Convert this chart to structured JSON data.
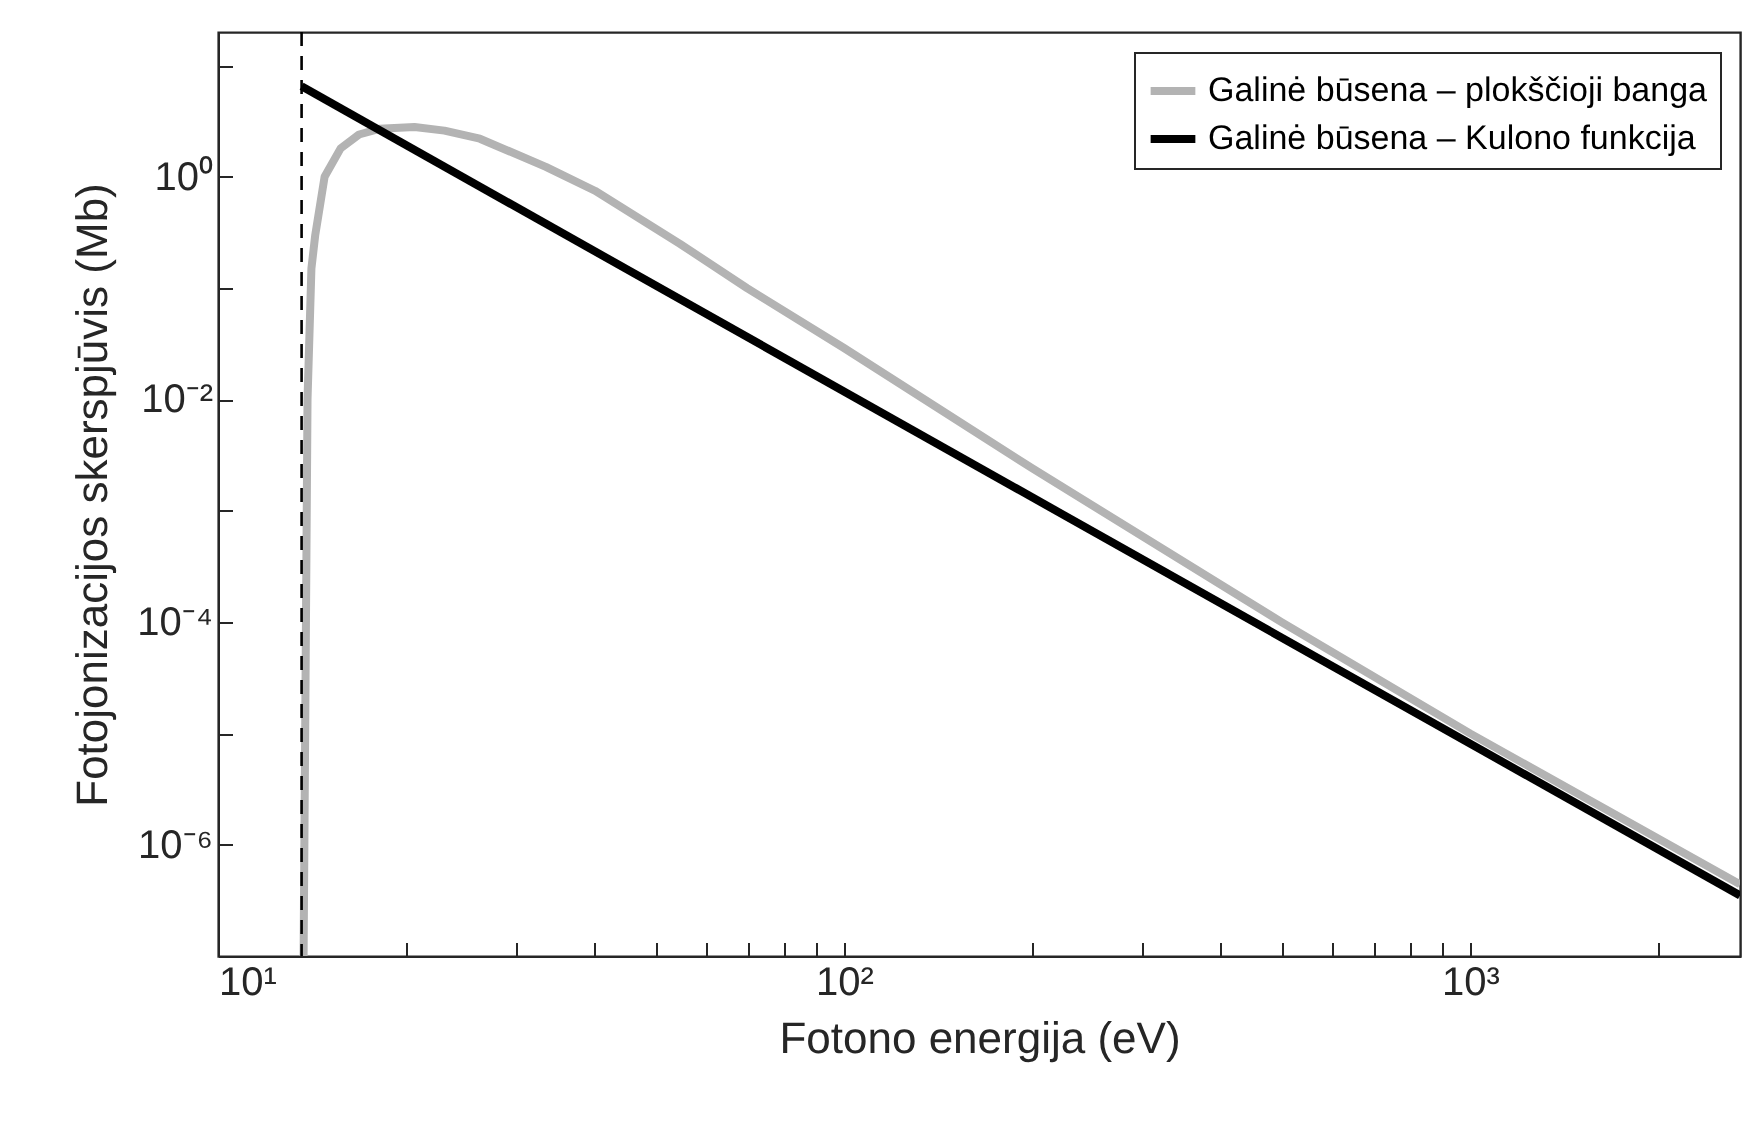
{
  "chart_data": {
    "type": "line",
    "xlabel": "Fotono energija (eV)",
    "ylabel": "Fotojonizacijos skerspjūvis (Mb)",
    "log": "xy",
    "xlim": [
      10,
      2700
    ],
    "ylim": [
      1e-07,
      20
    ],
    "xticks": [
      {
        "value": 10,
        "label": "10¹"
      },
      {
        "value": 20,
        "label": null
      },
      {
        "value": 30,
        "label": null
      },
      {
        "value": 40,
        "label": null
      },
      {
        "value": 50,
        "label": null
      },
      {
        "value": 60,
        "label": null
      },
      {
        "value": 70,
        "label": null
      },
      {
        "value": 80,
        "label": null
      },
      {
        "value": 90,
        "label": null
      },
      {
        "value": 100,
        "label": "10²"
      },
      {
        "value": 200,
        "label": null
      },
      {
        "value": 300,
        "label": null
      },
      {
        "value": 400,
        "label": null
      },
      {
        "value": 500,
        "label": null
      },
      {
        "value": 600,
        "label": null
      },
      {
        "value": 700,
        "label": null
      },
      {
        "value": 800,
        "label": null
      },
      {
        "value": 900,
        "label": null
      },
      {
        "value": 1000,
        "label": "10³"
      },
      {
        "value": 2000,
        "label": null
      }
    ],
    "yticks": [
      {
        "value": 1e-07,
        "label": null
      },
      {
        "value": 1e-06,
        "label": "10⁻⁶"
      },
      {
        "value": 1e-05,
        "label": null
      },
      {
        "value": 0.0001,
        "label": "10⁻⁴"
      },
      {
        "value": 0.001,
        "label": null
      },
      {
        "value": 0.01,
        "label": "10⁻²"
      },
      {
        "value": 0.1,
        "label": null
      },
      {
        "value": 1,
        "label": "10⁰"
      },
      {
        "value": 10,
        "label": null
      }
    ],
    "grid": false,
    "legend": "top right",
    "line_style": "solid",
    "ref_lines": [
      {
        "axis": "x",
        "value": 13.6,
        "color": "#000000",
        "line_style": "dashed"
      }
    ],
    "series": [
      {
        "name": "Galinė būsena – plokščioji banga",
        "color": "#b3b3b3",
        "x": [
          13.7,
          13.9,
          14.1,
          14.3,
          14.8,
          15.7,
          16.8,
          18.1,
          20.6,
          23,
          26.2,
          33.4,
          40,
          54.7,
          70,
          100,
          200,
          500,
          1000,
          2700
        ],
        "values": [
          1e-07,
          0.01,
          0.15,
          0.3,
          1.0,
          1.8,
          2.4,
          2.7,
          2.8,
          2.6,
          2.2,
          1.23,
          0.75,
          0.25,
          0.1,
          0.029,
          0.0024,
          0.0001,
          1e-05,
          4.4e-07
        ]
      },
      {
        "name": "Galinė būsena – Kulono funkcija",
        "color": "#000000",
        "x": [
          13.6,
          2700
        ],
        "values": [
          6.5,
          3.5e-07
        ]
      }
    ]
  }
}
